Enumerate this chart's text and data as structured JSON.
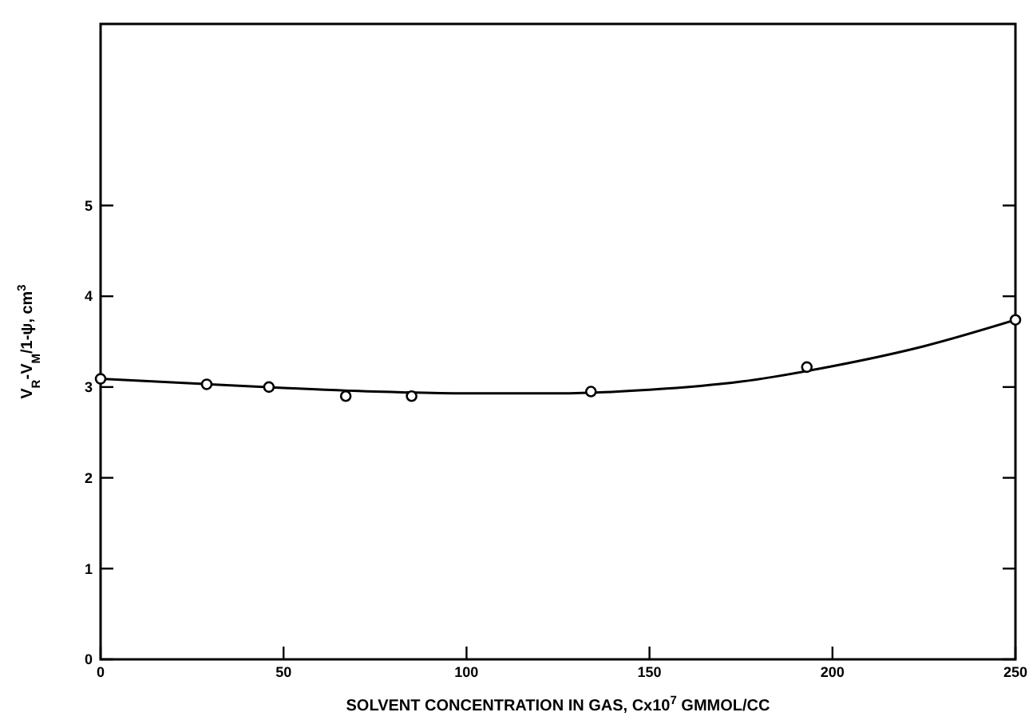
{
  "chart_data": {
    "type": "scatter",
    "xlabel": "SOLVENT CONCENTRATION IN GAS, Cx10$^{7}$ GMMOL/CC",
    "ylabel": "V$_{R}$-V$_{M}$/1-ψ, cm$^{3}$",
    "xlim": [
      0,
      250
    ],
    "xticks": [
      0,
      50,
      100,
      150,
      200,
      250
    ],
    "ylim": [
      0,
      7
    ],
    "yticks": [
      0,
      1,
      2,
      3,
      4,
      5
    ],
    "grid": false,
    "series": [
      {
        "color": "#000000",
        "marker": "circle",
        "x": [
          0,
          29,
          46,
          67,
          85,
          134,
          193,
          250
        ],
        "values": [
          3.09,
          3.03,
          3.0,
          2.9,
          2.9,
          2.95,
          3.22,
          3.74
        ]
      },
      {
        "type": "line",
        "color": "#000000",
        "line_style": "solid",
        "x": [
          0,
          25,
          50,
          75,
          100,
          125,
          150,
          175,
          200,
          225,
          250
        ],
        "values": [
          3.09,
          3.04,
          2.99,
          2.95,
          2.93,
          2.93,
          2.97,
          3.06,
          3.23,
          3.45,
          3.74
        ]
      }
    ]
  }
}
